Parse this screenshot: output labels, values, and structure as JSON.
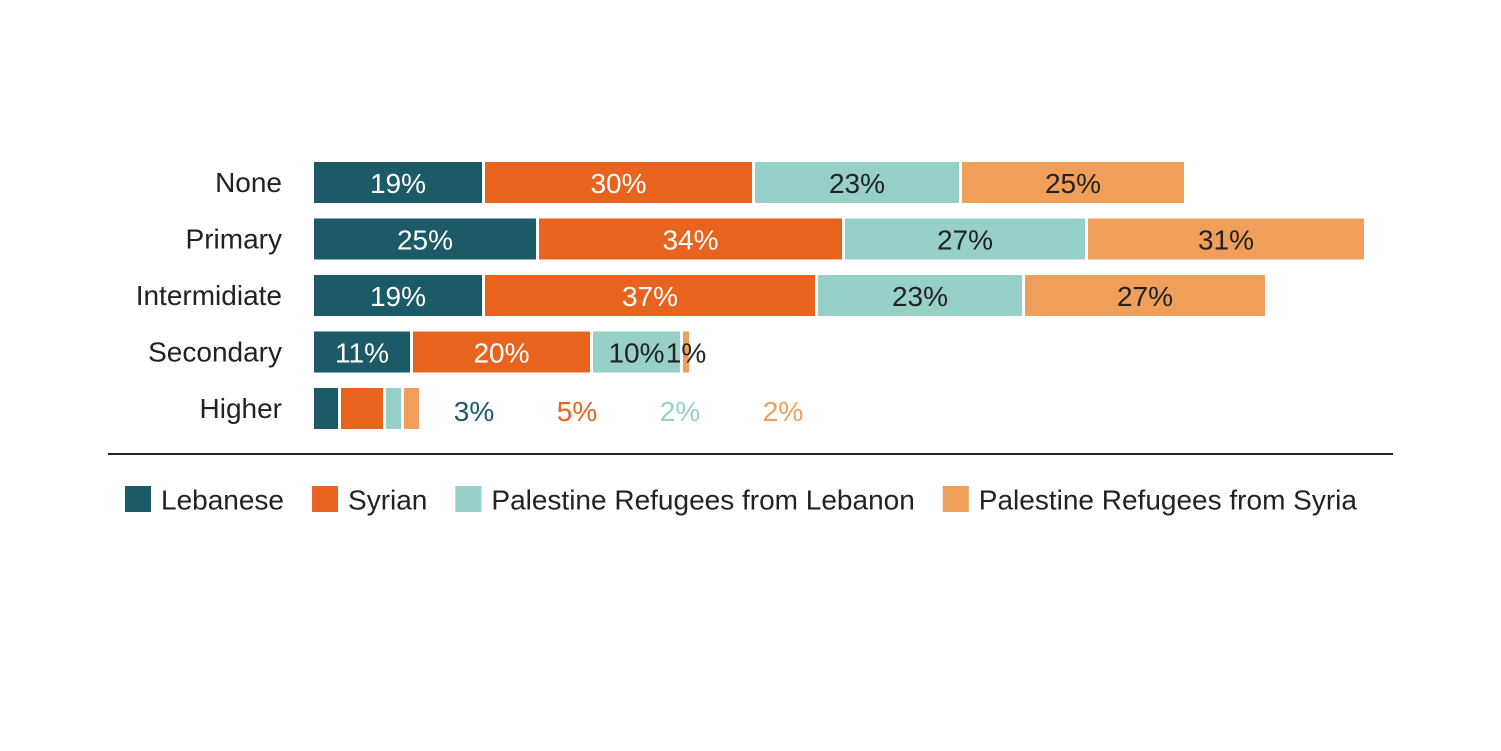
{
  "chart_data": {
    "type": "bar",
    "orientation": "horizontal",
    "stacked": true,
    "title": "",
    "xlabel": "",
    "ylabel": "",
    "categories": [
      "None",
      "Primary",
      "Intermidiate",
      "Secondary",
      "Higher"
    ],
    "series": [
      {
        "name": "Lebanese",
        "color": "#1b5a66",
        "values": [
          19,
          25,
          19,
          11,
          3
        ],
        "labels": [
          "19%",
          "25%",
          "19%",
          "11%",
          "3%"
        ],
        "label_color": "#ffffff"
      },
      {
        "name": "Syrian",
        "color": "#e8641e",
        "values": [
          30,
          34,
          37,
          20,
          5
        ],
        "labels": [
          "30%",
          "34%",
          "37%",
          "20%",
          "5%"
        ],
        "label_color": "#ffffff"
      },
      {
        "name": "Palestine Refugees from Lebanon",
        "color": "#97d0c8",
        "values": [
          23,
          27,
          23,
          10,
          2
        ],
        "labels": [
          "23%",
          "27%",
          "23%",
          "10%",
          "2%"
        ],
        "label_color": "#222222"
      },
      {
        "name": "Palestine Refugees from Syria",
        "color": "#f09f5a",
        "values": [
          25,
          31,
          27,
          1,
          2
        ],
        "labels": [
          "25%",
          "31%",
          "27%",
          "1%",
          "2%"
        ],
        "label_color": "#222222"
      }
    ],
    "outside_label_rows": [
      "Higher"
    ],
    "grid": false,
    "legend_position": "bottom"
  }
}
